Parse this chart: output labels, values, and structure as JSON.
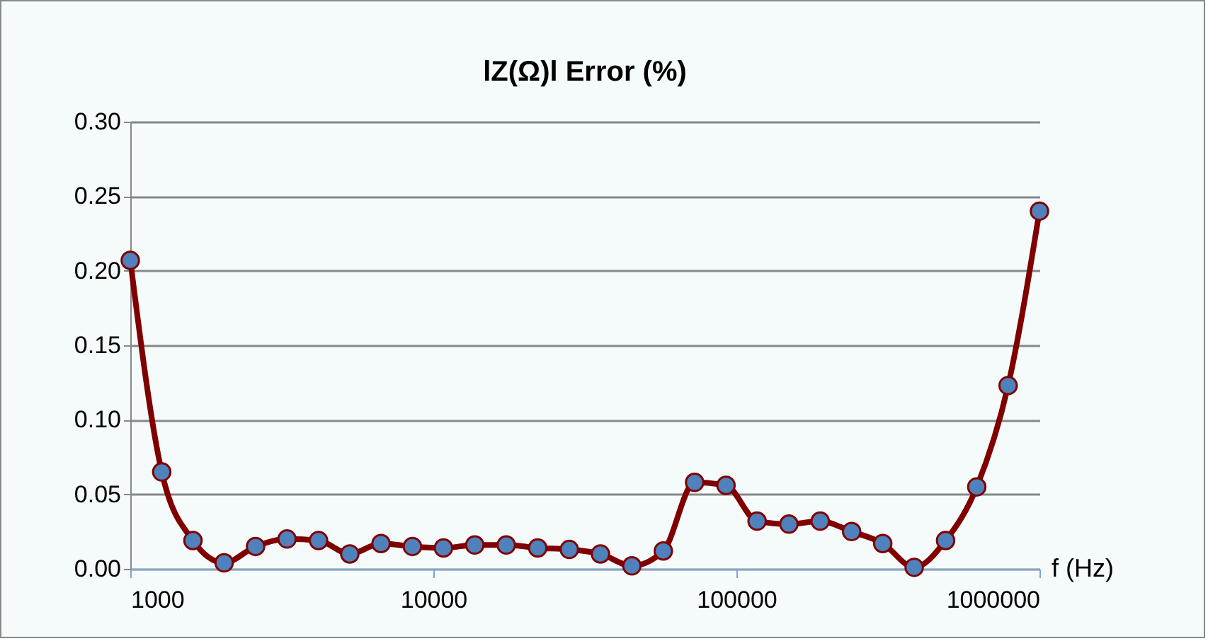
{
  "chart_data": {
    "type": "line",
    "title": "lZ(Ω)l Error (%)",
    "xlabel": "f (Hz)",
    "log": "x",
    "grid": "y",
    "marker": "circle",
    "line_style": "solid",
    "x": [
      1000,
      1270,
      1610,
      2040,
      2590,
      3290,
      4180,
      5300,
      6720,
      8530,
      10800,
      13700,
      17400,
      22100,
      28100,
      35600,
      45200,
      57400,
      72800,
      92400,
      117000,
      149000,
      189000,
      240000,
      304000,
      386000,
      490000,
      621000,
      788000,
      1000000
    ],
    "series": [
      {
        "color": "#800000",
        "values": [
          0.207,
          0.065,
          0.019,
          0.004,
          0.015,
          0.02,
          0.019,
          0.01,
          0.017,
          0.015,
          0.014,
          0.016,
          0.016,
          0.014,
          0.013,
          0.01,
          0.002,
          0.012,
          0.058,
          0.056,
          0.032,
          0.03,
          0.032,
          0.025,
          0.017,
          0.001,
          0.019,
          0.055,
          0.123,
          0.24
        ]
      }
    ],
    "xlim": [
      1000,
      1000000
    ],
    "xticks": [
      1000,
      10000,
      100000,
      1000000
    ],
    "ylim": [
      0,
      0.3
    ],
    "yticks": [
      {
        "value": 0,
        "label": "0.00"
      },
      {
        "value": 0.05,
        "label": "0.05"
      },
      {
        "value": 0.1,
        "label": "0.10"
      },
      {
        "value": 0.15,
        "label": "0.15"
      },
      {
        "value": 0.2,
        "label": "0.20"
      },
      {
        "value": 0.25,
        "label": "0.25"
      },
      {
        "value": 0.3,
        "label": "0.30"
      }
    ]
  }
}
